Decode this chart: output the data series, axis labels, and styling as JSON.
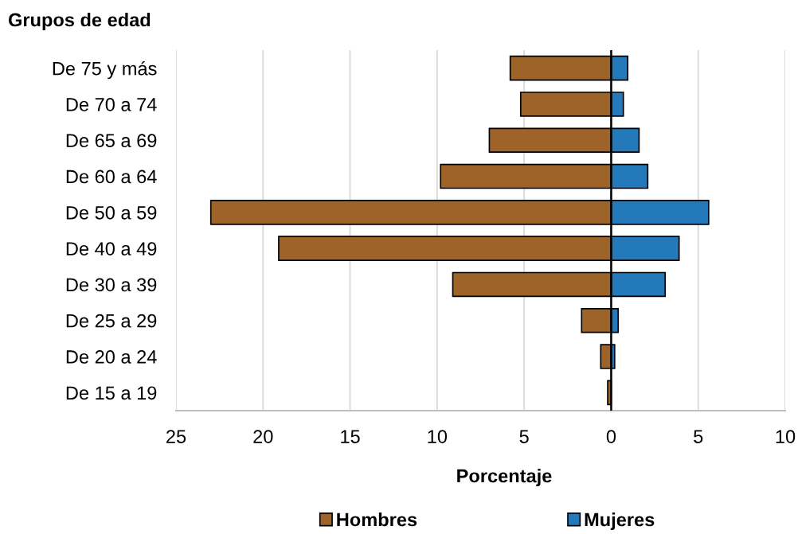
{
  "chart_data": {
    "type": "bar",
    "orientation": "horizontal",
    "stacked": true,
    "ylabel": "Grupos de edad",
    "xlabel": "Porcentaje",
    "categories": [
      "De 75 y más",
      "De 70 a 74",
      "De 65 a 69",
      "De 60 a 64",
      "De 50 a 59",
      "De 40 a 49",
      "De 30 a 39",
      "De 25 a 29",
      "De 20 a 24",
      "De 15 a 19"
    ],
    "series": [
      {
        "name": "Hombres",
        "color": "#9e6329",
        "values": [
          -5.8,
          -5.2,
          -7.0,
          -9.8,
          -23.0,
          -19.1,
          -9.1,
          -1.7,
          -0.6,
          -0.2
        ]
      },
      {
        "name": "Mujeres",
        "color": "#2479ba",
        "values": [
          0.95,
          0.7,
          1.6,
          2.1,
          5.6,
          3.9,
          3.1,
          0.4,
          0.2,
          null
        ]
      }
    ],
    "xlim": [
      -25,
      10
    ],
    "xticks": [
      {
        "value": -25,
        "label": "25"
      },
      {
        "value": -20,
        "label": "20"
      },
      {
        "value": -15,
        "label": "15"
      },
      {
        "value": -10,
        "label": "10"
      },
      {
        "value": -5,
        "label": "5"
      },
      0,
      5,
      10
    ],
    "grid": "x",
    "legend": "bottom",
    "ref_lines": [
      {
        "axis": "x",
        "value": 0,
        "color": "#000000"
      }
    ]
  }
}
